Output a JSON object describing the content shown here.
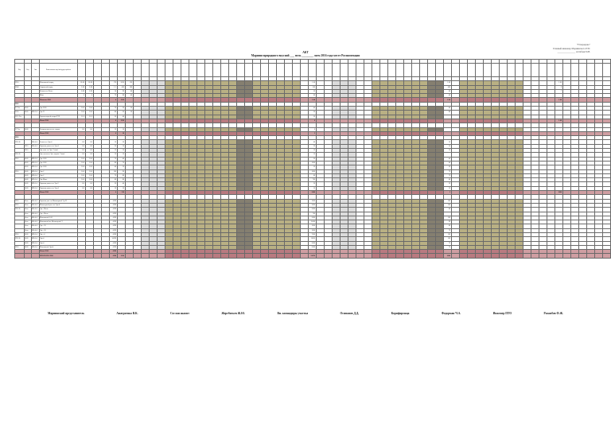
{
  "approval": [
    "\"Утверждаю\"",
    "Главный инженер Мариинского РЭС",
    "_______________ Алтабаев Ч.В."
  ],
  "title": {
    "line1": "АКТ",
    "line2": "Мариинсприродного вкусной ___ пель ________ лоем 2016 года месте Росинспекции"
  },
  "headers": {
    "group_top": [
      "",
      "",
      "",
      "",
      "",
      "",
      "",
      "",
      "",
      "",
      "",
      ""
    ],
    "columns": [
      "Код",
      "Отд.",
      "Сип",
      "Наименование водоёма/трудоустройство"
    ]
  },
  "colors": {
    "section_pink": "#cf9ea2",
    "olive": "#b9b084",
    "dark": "#857f70",
    "grey": "#dcdcdc"
  },
  "sections": [
    {
      "title": "",
      "rows": [
        {
          "code": "3910",
          "a": "",
          "b": "",
          "name": "Монтажный отряд",
          "v1": "18.00",
          "v2": "18.00",
          "v3": "176",
          "v4": "2020",
          "v5": "120",
          "r1": "1.00",
          "r2": "1.00",
          "r3": "1.00"
        },
        {
          "code": "3940",
          "a": "",
          "b": "",
          "name": "Сварочный отряд",
          "v1": "3.00",
          "v2": "3.00",
          "v3": "1.1",
          "v4": "420",
          "v5": "180",
          "r1": "500",
          "r2": "400",
          "r3": "9"
        },
        {
          "code": "",
          "a": "",
          "b": "",
          "name": "Вечная ось Волес",
          "v1": "0.00",
          "v2": "0.00",
          "v3": "14",
          "v4": "90",
          "v5": "46",
          "r1": "50",
          "r2": "60",
          "r3": "7"
        },
        {
          "code": "",
          "a": "",
          "b": "",
          "name": "Инва",
          "v1": "0",
          "v2": "0",
          "v3": "70",
          "v4": "80",
          "v5": "40",
          "r1": "60",
          "r2": "40",
          "r3": ""
        }
      ],
      "total": {
        "label": "Итого по 3910",
        "v3": "4",
        "v4": "1310",
        "r1": "2.00",
        "r2": "2.00",
        "r3": "1.00"
      }
    },
    {
      "title": "3910",
      "rows": [
        {
          "code": "31 Тех",
          "a": "2400",
          "b": "",
          "name": "Эрт 3000",
          "v1": "50.0",
          "v2": "50.0",
          "v3": "70",
          "v4": "20",
          "v5": "30",
          "r1": "40",
          "r2": "40",
          "r3": ""
        },
        {
          "code": "3205",
          "a": "2400",
          "b": "ВП-6-4",
          "name": "Эрт П",
          "v1": "50.0",
          "v2": "50.0",
          "v3": "80",
          "v4": "30",
          "v5": "50",
          "r1": "20",
          "r2": "80",
          "r3": ""
        },
        {
          "code": "3215 Тех",
          "a": "",
          "b": "",
          "name": "Охрана водной опоры РЭР",
          "v1": "51.0",
          "v2": "51.0",
          "v3": "30",
          "v4": "40",
          "v5": "",
          "r1": "30",
          "r2": "",
          "r3": ""
        }
      ],
      "total": {
        "label": "Итого 3910",
        "v3": "4",
        "v4": "1310",
        "r1": "4",
        "r2": "",
        "r3": "1.00"
      }
    },
    {
      "title": "",
      "rows": [
        {
          "code": "32 Тех",
          "a": "2400",
          "b": "",
          "name": "Распределитель ост. задача",
          "v1": "6.0",
          "v2": "6.0",
          "v3": "10",
          "v4": "10",
          "v5": "",
          "r1": "6",
          "r2": "",
          "r3": ""
        }
      ],
      "total": {
        "label": "Итого 3910",
        "v3": "4",
        "v4": "14",
        "r1": "2",
        "r2": "",
        "r3": ""
      }
    },
    {
      "title": "3910",
      "rows": [
        {
          "code": "3910 Ф",
          "a": "",
          "b": "ВО-4-4",
          "name": "Ремонт-ся Эрт-4",
          "v1": "6.0",
          "v2": "6.0",
          "v3": "10",
          "v4": "20",
          "v5": "",
          "r1": "40",
          "r2": "10",
          "r3": ""
        },
        {
          "code": "",
          "a": "3910",
          "b": "ВО-4-4",
          "name": "Охраноп ремон. по Эрт-4",
          "v1": "6.0",
          "v2": "6.0",
          "v3": "20",
          "v4": "10",
          "v5": "",
          "r1": "20",
          "r2": "10",
          "r3": ""
        },
        {
          "code": "",
          "a": "3910",
          "b": "",
          "name": "Эрт эксп. по Эрт. 'Сплав'",
          "v1": "6.0",
          "v2": "6.0",
          "v3": "10",
          "v4": "10",
          "v5": "",
          "r1": "10",
          "r2": "10",
          "r3": ""
        },
        {
          "code": "3910 Ф",
          "a": "",
          "b": "",
          "name": "Эрт. смена по Эрт. заграж. 'Сплав'",
          "v1": "6.0",
          "v2": "6.0",
          "v3": "10",
          "v4": "10",
          "v5": "",
          "r1": "10",
          "r2": "",
          "r3": ""
        },
        {
          "code": "3910",
          "a": "2400",
          "b": "ВП-6-4",
          "name": "Эрт 1000",
          "v1": "50.0",
          "v2": "50.0",
          "v3": "70",
          "v4": "40",
          "v5": "",
          "r1": "30",
          "r2": "40",
          "r3": ""
        },
        {
          "code": "",
          "a": "2400",
          "b": "ВП-6-4",
          "name": "Эрт 1000",
          "v1": "50.0",
          "v2": "50.0",
          "v3": "80",
          "v4": "70",
          "v5": "",
          "r1": "1000",
          "r2": "40",
          "r3": ""
        },
        {
          "code": "",
          "a": "2400",
          "b": "ВП-6-4",
          "name": "Эрт 1000",
          "v1": "50.0",
          "v2": "50.0",
          "v3": "40",
          "v4": "10",
          "v5": "",
          "r1": "50",
          "r2": "30",
          "r3": ""
        },
        {
          "code": "3910",
          "a": "2400",
          "b": "ВП-6-4",
          "name": "Эрт-2",
          "v1": "50.0",
          "v2": "50.0",
          "v3": "100",
          "v4": "90",
          "v5": "",
          "r1": "1000",
          "r2": "70",
          "r3": ""
        },
        {
          "code": "",
          "a": "2400",
          "b": "ВП-6-4",
          "name": "Эрт-2",
          "v1": "50.0",
          "v2": "50.0",
          "v3": "70",
          "v4": "80",
          "v5": "",
          "r1": "60",
          "r2": "70",
          "r3": ""
        },
        {
          "code": "",
          "a": "2400",
          "b": "ВП-6-4",
          "name": "Эрт Мано",
          "v1": "50.0",
          "v2": "50.0",
          "v3": "80",
          "v4": "80",
          "v5": "",
          "r1": "700",
          "r2": "40",
          "r3": ""
        },
        {
          "code": "",
          "a": "2400",
          "b": "ВП-6-4",
          "name": "Охраноп ремон. по Эрт-2",
          "v1": "6.0",
          "v2": "6.0",
          "v3": "20",
          "v4": "40",
          "v5": "",
          "r1": "20",
          "r2": "20",
          "r3": ""
        },
        {
          "code": "",
          "a": "2400",
          "b": "ВП-6-4",
          "name": "Охраноп ремон. по Эрт-4",
          "v1": "6.0",
          "v2": "6.0",
          "v3": "10",
          "v4": "10",
          "v5": "",
          "r1": "10",
          "r2": "10",
          "r3": ""
        }
      ],
      "total": {
        "label": "Итого 3910",
        "v3": "4",
        "v4": "510",
        "r1": "2400",
        "r2": "2",
        "r3": "1000"
      }
    },
    {
      "title": "",
      "rows": [
        {
          "code": "3910",
          "a": "Лоза",
          "b": "ВО-4-4",
          "name": "Охраноп рем. по Мониторной Э.р.П.",
          "v1": "",
          "v2": "",
          "v3": "4190",
          "v4": "",
          "v5": "",
          "r1": "1000",
          "r2": "100",
          "r3": ""
        },
        {
          "code": "3910",
          "a": "Лоза",
          "b": "ВО-4-4",
          "name": "Мониторной рем. по Эрт-4",
          "v1": "",
          "v2": "",
          "v3": "4190",
          "v4": "",
          "v5": "",
          "r1": "3000",
          "r2": "100",
          "r3": ""
        },
        {
          "code": "3910 Ф",
          "a": "Лоза",
          "b": "ВО-4-4",
          "name": "Эрт - Мано",
          "v1": "",
          "v2": "",
          "v3": "4190",
          "v4": "",
          "v5": "",
          "r1": "2000",
          "r2": "80",
          "r3": ""
        },
        {
          "code": "",
          "a": "Лоза",
          "b": "ВО-4-4",
          "name": "Эрт - Мано",
          "v1": "",
          "v2": "",
          "v3": "4190",
          "v4": "",
          "v5": "",
          "r1": "700",
          "r2": "",
          "r3": ""
        },
        {
          "code": "",
          "a": "Лоза",
          "b": "ВО-4-4",
          "name": "Монтажный 1.00",
          "v1": "",
          "v2": "",
          "v3": "4190",
          "v4": "",
          "v5": "",
          "r1": "2000",
          "r2": "100",
          "r3": ""
        },
        {
          "code": "",
          "a": "Лоза",
          "b": "ВО-4-4",
          "name": "Монтажный по Мониторной Э",
          "v1": "",
          "v2": "",
          "v3": "4190",
          "v4": "",
          "v5": "",
          "r1": "15000",
          "r2": "90",
          "r3": ""
        },
        {
          "code": "",
          "a": "Лоза",
          "b": "ВО-4-4",
          "name": "Эрт - 30",
          "v1": "",
          "v2": "",
          "v3": "4190",
          "v4": "",
          "v5": "",
          "r1": "1000",
          "r2": "80",
          "r3": ""
        },
        {
          "code": "",
          "a": "Лоза",
          "b": "ВО-4-4",
          "name": "Эрт - 30",
          "v1": "",
          "v2": "",
          "v3": "4190",
          "v4": "",
          "v5": "",
          "r1": "1000",
          "r2": "70",
          "r3": ""
        },
        {
          "code": "3910",
          "a": "2400",
          "b": "ВП-6-4",
          "name": "Эрт - 4",
          "v1": "",
          "v2": "",
          "v3": "4190",
          "v4": "",
          "v5": "",
          "r1": "7000",
          "r2": "100",
          "r3": ""
        },
        {
          "code": "3910 Ф",
          "a": "2400",
          "b": "ВП-6-4",
          "name": "Эрт-4",
          "v1": "",
          "v2": "",
          "v3": "14190",
          "v4": "",
          "v5": "",
          "r1": "11000",
          "r2": "100",
          "r3": ""
        },
        {
          "code": "",
          "a": "2400",
          "b": "ВП-6-4",
          "name": "Эрт-4",
          "v1": "",
          "v2": "",
          "v3": "4190",
          "v4": "",
          "v5": "",
          "r1": "3000",
          "r2": "70",
          "r3": ""
        },
        {
          "code": "3910",
          "a": "2400",
          "b": "ВП-6-4",
          "name": "Монтажный Эрт-4",
          "v1": "",
          "v2": "",
          "v3": "4190",
          "v4": "",
          "v5": "",
          "r1": "2000",
          "r2": "70",
          "r3": ""
        }
      ],
      "total": {
        "label": "Итого 3910",
        "v3": "4190",
        "v4": "",
        "r1": "",
        "r2": "",
        "r3": ""
      }
    }
  ],
  "grand_total": {
    "label": "ИТОГО ПО 3910",
    "v3": "4190",
    "v4": "1310",
    "r1": "52870",
    "r2": "1000",
    "r3": ""
  },
  "signatures": [
    "Мариинский представитель",
    "Анатроенко В.К.",
    "Сослан акаонт",
    "Жеребятьев Ж.Ю.",
    "Вн. командиры участка",
    "Осипанов Д.Д.",
    "Корнфирмаца",
    "Федорман Ч.А.",
    "Инженер ПТО",
    "Разамбов Ф.Ж."
  ]
}
